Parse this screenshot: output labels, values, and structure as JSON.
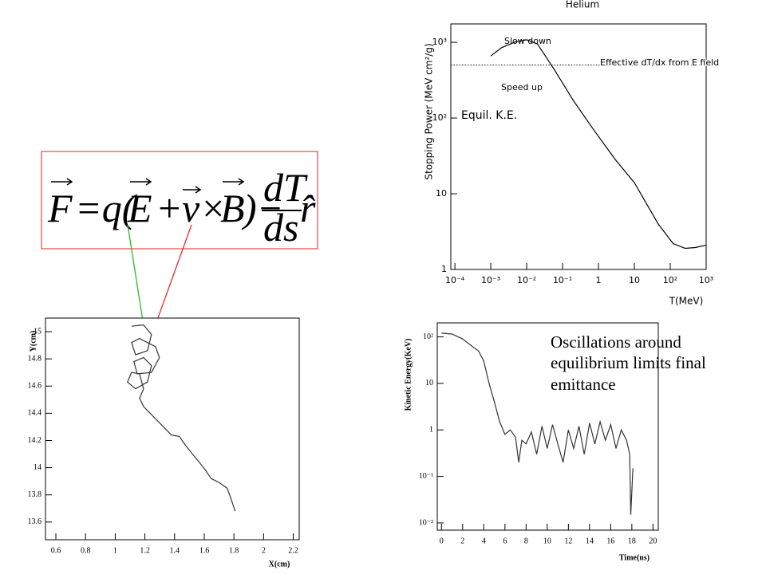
{
  "chart_data": [
    {
      "type": "line",
      "title": "Helium",
      "xlabel": "T(MeV)",
      "ylabel": "Stopping Power (MeV cm²/g)",
      "xlog": true,
      "ylog": true,
      "xlim": [
        7.7e-05,
        1000
      ],
      "ylim": [
        1,
        1750
      ],
      "xticks": [
        {
          "value": 0.0001,
          "label": "10⁻⁴"
        },
        {
          "value": 0.001,
          "label": "10⁻³"
        },
        {
          "value": 0.01,
          "label": "10⁻²"
        },
        {
          "value": 0.1,
          "label": "10⁻¹"
        },
        1,
        10,
        {
          "value": 100,
          "label": "10²"
        },
        {
          "value": 1000,
          "label": "10³"
        }
      ],
      "yticks": [
        1,
        10,
        {
          "value": 100,
          "label": "10²"
        },
        {
          "value": 1000,
          "label": "10³"
        }
      ],
      "x": [
        0.001,
        0.002,
        0.005,
        0.01,
        0.02,
        0.06,
        0.2,
        0.8,
        3,
        10,
        46,
        120,
        260,
        500,
        1000
      ],
      "values": [
        660,
        850,
        1020,
        1080,
        950,
        430,
        170,
        66,
        28,
        14,
        4,
        2.2,
        1.9,
        1.95,
        2.1
      ],
      "color": "#000000",
      "hline": 500,
      "annotations": [
        "Slow down",
        "Speed up",
        "Effective dT/dx from E field",
        "Equil. K.E."
      ]
    },
    {
      "type": "line",
      "xlabel": "X(cm)",
      "ylabel": "Y(cm)",
      "xlim": [
        0.53,
        2.24
      ],
      "ylim": [
        13.47,
        15.1
      ],
      "xticks": [
        0.6,
        0.8,
        1,
        1.2,
        1.4,
        1.6,
        1.8,
        2,
        2.2
      ],
      "yticks": [
        13.6,
        13.8,
        14,
        14.2,
        14.4,
        14.6,
        14.8,
        15
      ],
      "x": [
        1.11,
        1.191,
        1.244,
        1.217,
        1.137,
        1.11,
        1.164,
        1.271,
        1.298,
        1.244,
        1.148,
        1.126,
        1.191,
        1.244,
        1.217,
        1.137,
        1.083,
        1.11,
        1.164,
        1.191,
        1.164,
        1.191,
        1.271,
        1.325,
        1.379,
        1.432,
        1.47,
        1.513,
        1.566,
        1.609,
        1.647,
        1.701,
        1.754,
        1.781,
        1.808
      ],
      "values": [
        15.04,
        15.05,
        14.98,
        14.86,
        14.83,
        14.92,
        14.95,
        14.89,
        14.81,
        14.7,
        14.69,
        14.78,
        14.81,
        14.75,
        14.63,
        14.58,
        14.63,
        14.7,
        14.69,
        14.58,
        14.51,
        14.45,
        14.36,
        14.3,
        14.24,
        14.23,
        14.17,
        14.11,
        14.04,
        13.98,
        13.92,
        13.89,
        13.85,
        13.77,
        13.68
      ],
      "color": "#333333"
    },
    {
      "type": "line",
      "xlabel": "Time(ns)",
      "ylabel": "Kinetic Energy(KeV)",
      "ylog": true,
      "xlim": [
        -0.4,
        20.5
      ],
      "ylim": [
        0.007,
        200
      ],
      "xticks": [
        0,
        2,
        4,
        6,
        8,
        10,
        12,
        14,
        16,
        18,
        20
      ],
      "yticks": [
        {
          "value": 0.01,
          "label": "10⁻²"
        },
        {
          "value": 0.1,
          "label": "10⁻¹"
        },
        1,
        10,
        {
          "value": 100,
          "label": "10²"
        }
      ],
      "x": [
        0,
        1,
        2,
        3,
        3.5,
        4,
        4.5,
        5,
        5.5,
        6,
        6.5,
        7,
        7.3,
        7.6,
        8,
        8.5,
        9,
        9.5,
        10,
        10.5,
        11,
        11.5,
        12,
        12.5,
        13,
        13.5,
        14,
        14.5,
        15,
        15.5,
        16,
        16.5,
        17,
        17.5,
        17.8,
        17.9,
        18.1
      ],
      "values": [
        120,
        115,
        90,
        60,
        50,
        30,
        10,
        4,
        1.5,
        0.8,
        1,
        0.7,
        0.2,
        0.6,
        0.5,
        0.9,
        0.3,
        1.2,
        0.4,
        1.3,
        0.5,
        0.2,
        1.0,
        0.4,
        1.2,
        0.3,
        1.4,
        0.5,
        1.5,
        0.6,
        1.3,
        0.4,
        1.0,
        0.6,
        0.3,
        0.015,
        0.15
      ],
      "color": "#333333"
    }
  ],
  "equation": [
    "F",
    "=q(",
    "E",
    "+",
    "v",
    "×",
    "B",
    ")−",
    "dT",
    "ds",
    "r̂"
  ],
  "annotation": "Oscillations around equilibrium limits final emittance"
}
